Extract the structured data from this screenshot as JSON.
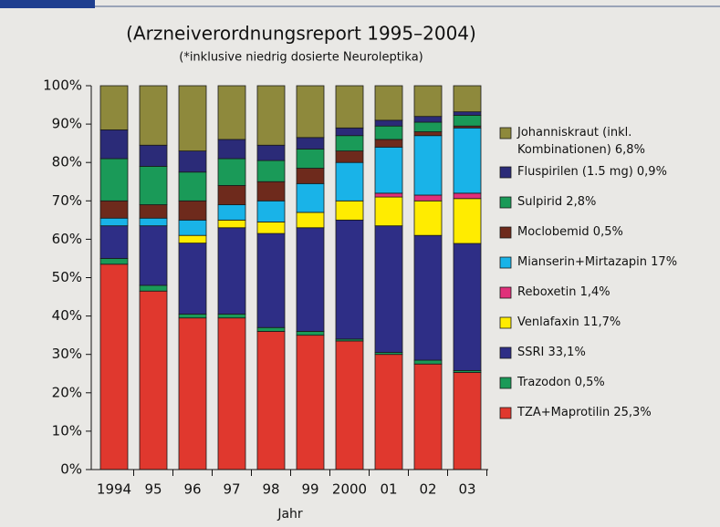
{
  "chart_data": {
    "type": "stacked_bar",
    "title": "(Arzneiverordnungsreport 1995–2004)",
    "subtitle": "(*inklusive niedrig dosierte Neuroleptika)",
    "x_label": "Jahr",
    "categories": [
      "1994",
      "95",
      "96",
      "97",
      "98",
      "99",
      "2000",
      "01",
      "02",
      "03"
    ],
    "series": [
      {
        "name": "TZA+Maprotilin 25,3%",
        "color": "#e0382e",
        "values": [
          53.5,
          46.5,
          39.5,
          39.5,
          36,
          35,
          33.5,
          30,
          27.5,
          25.3
        ]
      },
      {
        "name": "Trazodon 0,5%",
        "color": "#1a9a58",
        "values": [
          1.5,
          1.5,
          1,
          1,
          1,
          1,
          0.5,
          0.5,
          1,
          0.5
        ]
      },
      {
        "name": "SSRI 33,1%",
        "color": "#2e2e86",
        "values": [
          8.5,
          15.5,
          18.5,
          22.5,
          24.5,
          27,
          31,
          33,
          32.5,
          33.1
        ]
      },
      {
        "name": "Venlafaxin 11,7%",
        "color": "#ffec00",
        "values": [
          0,
          0,
          2,
          2,
          3,
          4,
          5,
          7.5,
          9,
          11.7
        ]
      },
      {
        "name": "Reboxetin 1,4%",
        "color": "#e0307a",
        "values": [
          0,
          0,
          0,
          0,
          0,
          0,
          0,
          1,
          1.5,
          1.4
        ]
      },
      {
        "name": "Mianserin+Mirtazapin 17%",
        "color": "#19b3e8",
        "values": [
          2,
          2,
          4,
          4,
          5.5,
          7.5,
          10,
          12,
          15.5,
          17
        ]
      },
      {
        "name": "Moclobemid 0,5%",
        "color": "#6e2a1c",
        "values": [
          4.5,
          3.5,
          5,
          5,
          5,
          4,
          3,
          2,
          1,
          0.5
        ]
      },
      {
        "name": "Sulpirid 2,8%",
        "color": "#1a9a58",
        "values": [
          11,
          10,
          7.5,
          7,
          5.5,
          5,
          4,
          3.5,
          2.5,
          2.8
        ]
      },
      {
        "name": "Fluspirilen (1.5 mg) 0,9%",
        "color": "#2b2b78",
        "values": [
          7.5,
          5.5,
          5.5,
          5,
          4,
          3,
          2,
          1.5,
          1.5,
          0.9
        ]
      },
      {
        "name": "Johanniskraut (inkl.\nKombinationen) 6,8%",
        "color": "#8e893c",
        "values": [
          11.5,
          15.5,
          17,
          14,
          15.5,
          13.5,
          11,
          9,
          8,
          6.8
        ]
      }
    ],
    "ylim": [
      0,
      100
    ],
    "yticks": [
      {
        "value": 0,
        "label": "0%"
      },
      {
        "value": 10,
        "label": "10%"
      },
      {
        "value": 20,
        "label": "20%"
      },
      {
        "value": 30,
        "label": "30%"
      },
      {
        "value": 40,
        "label": "40%"
      },
      {
        "value": 50,
        "label": "50%"
      },
      {
        "value": 60,
        "label": "60%"
      },
      {
        "value": 70,
        "label": "70%"
      },
      {
        "value": 80,
        "label": "80%"
      },
      {
        "value": 90,
        "label": "90%"
      },
      {
        "value": 100,
        "label": "100%"
      }
    ]
  }
}
